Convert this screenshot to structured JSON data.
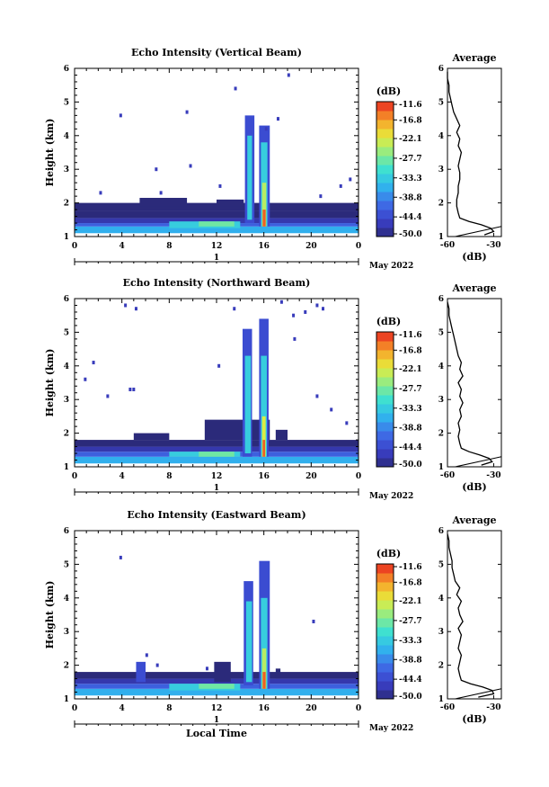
{
  "chart_data": [
    {
      "type": "heatmap",
      "title": "Echo Intensity (Vertical Beam)",
      "ylabel": "Height (km)",
      "xlim": [
        0,
        24
      ],
      "ylim": [
        1,
        6
      ],
      "xticks": [
        "0",
        "4",
        "8",
        "12",
        "16",
        "20",
        "0"
      ],
      "yticks": [
        "1",
        "2",
        "3",
        "4",
        "5",
        "6"
      ],
      "date_day": "1",
      "date_month": "May 2022",
      "colorbar_unit": "(dB)",
      "colorbar_ticks": [
        "-11.6",
        "-16.8",
        "-22.1",
        "-27.7",
        "-33.3",
        "-38.8",
        "-44.4",
        "-50.0"
      ],
      "colorbar_range": [
        -50.0,
        -11.6
      ],
      "profile": {
        "title": "Average",
        "xlabel": "(dB)",
        "xticks": [
          "-60",
          "-30"
        ],
        "xlim": [
          -60,
          -25
        ],
        "ylim": [
          1,
          6
        ],
        "yticks": [
          "1",
          "2",
          "3",
          "4",
          "5",
          "6"
        ],
        "heights": [
          1.05,
          1.15,
          1.25,
          1.35,
          1.45,
          1.55,
          1.7,
          1.9,
          2.1,
          2.3,
          2.5,
          2.7,
          2.9,
          3.1,
          3.3,
          3.5,
          3.7,
          3.9,
          4.1,
          4.3,
          4.5,
          4.7,
          4.9,
          5.1,
          5.3,
          5.5,
          5.7,
          5.9
        ],
        "values": [
          -36,
          -30,
          -32,
          -38,
          -46,
          -52,
          -53,
          -54,
          -54,
          -53,
          -53,
          -52,
          -52,
          -53,
          -52,
          -51,
          -53,
          -52,
          -54,
          -52,
          -54,
          -56,
          -57,
          -58,
          -59,
          -59,
          -60,
          -60
        ]
      },
      "cells": [
        [
          0,
          24,
          1.1,
          1.3,
          -36
        ],
        [
          0,
          24,
          1.3,
          1.4,
          -42
        ],
        [
          0,
          24,
          1.4,
          1.55,
          -47
        ],
        [
          0,
          24,
          1.55,
          1.75,
          -51
        ],
        [
          0,
          24,
          1.75,
          2.0,
          -54
        ],
        [
          8,
          14,
          1.25,
          1.45,
          -33
        ],
        [
          10.5,
          13.5,
          1.3,
          1.45,
          -28
        ],
        [
          14.4,
          15.2,
          1.4,
          4.6,
          -44
        ],
        [
          14.6,
          15.0,
          1.5,
          4.0,
          -33
        ],
        [
          15.6,
          16.5,
          1.3,
          4.3,
          -44
        ],
        [
          15.75,
          16.3,
          1.3,
          3.8,
          -33
        ],
        [
          15.85,
          16.2,
          1.3,
          2.6,
          -24
        ],
        [
          15.9,
          16.15,
          1.3,
          1.8,
          -14
        ],
        [
          12,
          14.3,
          1.9,
          2.1,
          -52
        ],
        [
          5.5,
          9.5,
          1.9,
          2.15,
          -53
        ]
      ],
      "specks": [
        [
          3.9,
          4.6
        ],
        [
          9.5,
          4.7
        ],
        [
          13.6,
          5.4
        ],
        [
          6.9,
          3.0
        ],
        [
          7.3,
          2.3
        ],
        [
          9.8,
          3.1
        ],
        [
          16.2,
          4.2
        ],
        [
          17.2,
          4.5
        ],
        [
          18.1,
          5.8
        ],
        [
          2.2,
          2.3
        ],
        [
          22.5,
          2.5
        ],
        [
          23.3,
          2.7
        ],
        [
          20.8,
          2.2
        ],
        [
          12.3,
          2.5
        ]
      ]
    },
    {
      "type": "heatmap",
      "title": "Echo Intensity (Northward Beam)",
      "ylabel": "Height (km)",
      "xlim": [
        0,
        24
      ],
      "ylim": [
        1,
        6
      ],
      "xticks": [
        "0",
        "4",
        "8",
        "12",
        "16",
        "20",
        "0"
      ],
      "yticks": [
        "1",
        "2",
        "3",
        "4",
        "5",
        "6"
      ],
      "date_day": "1",
      "date_month": "May 2022",
      "colorbar_unit": "(dB)",
      "colorbar_ticks": [
        "-11.6",
        "-16.8",
        "-22.1",
        "-27.7",
        "-33.3",
        "-38.8",
        "-44.4",
        "-50.0"
      ],
      "colorbar_range": [
        -50.0,
        -11.6
      ],
      "profile": {
        "title": "Average",
        "xlabel": "(dB)",
        "xticks": [
          "-60",
          "-30"
        ],
        "xlim": [
          -60,
          -25
        ],
        "ylim": [
          1,
          6
        ],
        "yticks": [
          "1",
          "2",
          "3",
          "4",
          "5",
          "6"
        ],
        "heights": [
          1.05,
          1.15,
          1.25,
          1.35,
          1.45,
          1.55,
          1.7,
          1.9,
          2.1,
          2.3,
          2.5,
          2.7,
          2.9,
          3.1,
          3.3,
          3.5,
          3.7,
          3.9,
          4.1,
          4.3,
          4.5,
          4.7,
          4.9,
          5.1,
          5.3,
          5.5,
          5.7,
          5.9
        ],
        "values": [
          -38,
          -31,
          -33,
          -39,
          -46,
          -51,
          -52,
          -53,
          -52,
          -53,
          -51,
          -52,
          -50,
          -52,
          -51,
          -53,
          -50,
          -52,
          -51,
          -53,
          -54,
          -55,
          -56,
          -57,
          -58,
          -59,
          -59,
          -60
        ]
      },
      "cells": [
        [
          0,
          24,
          1.1,
          1.3,
          -36
        ],
        [
          0,
          24,
          1.3,
          1.45,
          -42
        ],
        [
          0,
          24,
          1.45,
          1.6,
          -47
        ],
        [
          0,
          24,
          1.6,
          1.8,
          -52
        ],
        [
          8,
          14,
          1.3,
          1.45,
          -33
        ],
        [
          10.5,
          13.5,
          1.3,
          1.45,
          -28
        ],
        [
          11,
          16.5,
          1.8,
          2.4,
          -54
        ],
        [
          14.2,
          15.0,
          1.3,
          5.1,
          -44
        ],
        [
          14.4,
          14.9,
          1.4,
          4.3,
          -33
        ],
        [
          15.6,
          16.4,
          1.3,
          5.4,
          -44
        ],
        [
          15.75,
          16.25,
          1.3,
          4.3,
          -33
        ],
        [
          15.85,
          16.15,
          1.3,
          2.5,
          -22
        ],
        [
          15.9,
          16.1,
          1.3,
          1.8,
          -14
        ],
        [
          17,
          18,
          1.8,
          2.1,
          -53
        ],
        [
          5,
          8,
          1.8,
          2.0,
          -54
        ]
      ],
      "specks": [
        [
          4.3,
          5.8
        ],
        [
          5.2,
          5.7
        ],
        [
          1.6,
          4.1
        ],
        [
          0.9,
          3.6
        ],
        [
          2.8,
          3.1
        ],
        [
          4.7,
          3.3
        ],
        [
          5.0,
          3.3
        ],
        [
          12.2,
          4.0
        ],
        [
          18.5,
          5.5
        ],
        [
          19.5,
          5.6
        ],
        [
          20.5,
          5.8
        ],
        [
          21.0,
          5.7
        ],
        [
          18.6,
          4.8
        ],
        [
          20.5,
          3.1
        ],
        [
          21.7,
          2.7
        ],
        [
          23.0,
          2.3
        ],
        [
          13.5,
          5.7
        ],
        [
          17.5,
          5.9
        ]
      ]
    },
    {
      "type": "heatmap",
      "title": "Echo Intensity (Eastward Beam)",
      "ylabel": "Height (km)",
      "xlabel": "Local Time",
      "xlim": [
        0,
        24
      ],
      "ylim": [
        1,
        6
      ],
      "xticks": [
        "0",
        "4",
        "8",
        "12",
        "16",
        "20",
        "0"
      ],
      "yticks": [
        "1",
        "2",
        "3",
        "4",
        "5",
        "6"
      ],
      "date_day": "1",
      "date_month": "May 2022",
      "colorbar_unit": "(dB)",
      "colorbar_ticks": [
        "-11.6",
        "-16.8",
        "-22.1",
        "-27.7",
        "-33.3",
        "-38.8",
        "-44.4",
        "-50.0"
      ],
      "colorbar_range": [
        -50.0,
        -11.6
      ],
      "profile": {
        "title": "Average",
        "xlabel": "(dB)",
        "xticks": [
          "-60",
          "-30"
        ],
        "xlim": [
          -60,
          -25
        ],
        "ylim": [
          1,
          6
        ],
        "yticks": [
          "1",
          "2",
          "3",
          "4",
          "5",
          "6"
        ],
        "heights": [
          1.05,
          1.15,
          1.25,
          1.35,
          1.45,
          1.55,
          1.7,
          1.9,
          2.1,
          2.3,
          2.5,
          2.7,
          2.9,
          3.1,
          3.3,
          3.5,
          3.7,
          3.9,
          4.1,
          4.3,
          4.5,
          4.7,
          4.9,
          5.1,
          5.3,
          5.5,
          5.7,
          5.9
        ],
        "values": [
          -40,
          -30,
          -31,
          -37,
          -45,
          -51,
          -52,
          -53,
          -52,
          -51,
          -53,
          -52,
          -51,
          -53,
          -50,
          -52,
          -53,
          -51,
          -54,
          -52,
          -55,
          -56,
          -57,
          -57,
          -58,
          -59,
          -59,
          -60
        ]
      },
      "cells": [
        [
          0,
          24,
          1.1,
          1.3,
          -36
        ],
        [
          0,
          24,
          1.3,
          1.45,
          -42
        ],
        [
          0,
          24,
          1.45,
          1.6,
          -47
        ],
        [
          0,
          24,
          1.6,
          1.8,
          -52
        ],
        [
          8,
          14,
          1.25,
          1.45,
          -33
        ],
        [
          10.5,
          13.5,
          1.3,
          1.45,
          -28
        ],
        [
          14.3,
          15.1,
          1.4,
          4.5,
          -44
        ],
        [
          14.5,
          15.0,
          1.5,
          3.9,
          -33
        ],
        [
          15.6,
          16.5,
          1.3,
          5.1,
          -44
        ],
        [
          15.75,
          16.3,
          1.3,
          4.0,
          -33
        ],
        [
          15.85,
          16.2,
          1.3,
          2.5,
          -24
        ],
        [
          15.9,
          16.15,
          1.3,
          1.8,
          -14
        ],
        [
          5.2,
          6.0,
          1.5,
          2.1,
          -44
        ],
        [
          11.8,
          13.2,
          1.5,
          2.1,
          -50
        ],
        [
          17.0,
          17.4,
          1.6,
          1.9,
          -50
        ]
      ],
      "specks": [
        [
          3.9,
          5.2
        ],
        [
          20.2,
          3.3
        ],
        [
          6.1,
          2.3
        ],
        [
          7.0,
          2.0
        ],
        [
          11.2,
          1.9
        ]
      ]
    }
  ]
}
